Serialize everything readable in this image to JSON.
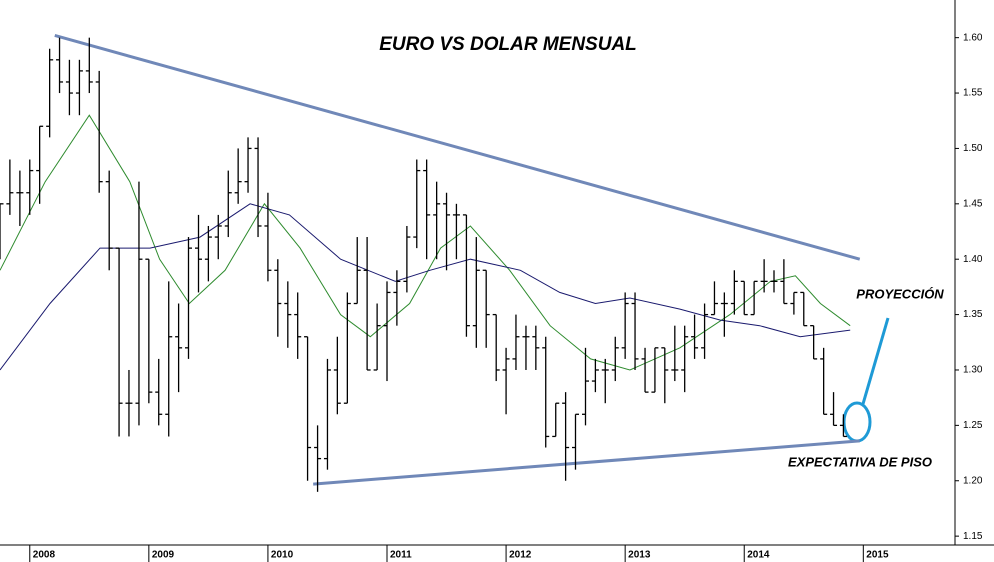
{
  "chart_data": {
    "type": "ohlc",
    "title": "EURO VS DOLAR MENSUAL",
    "x": [
      2007.75,
      2007.833,
      2007.917,
      2008,
      2008.083,
      2008.167,
      2008.25,
      2008.333,
      2008.417,
      2008.5,
      2008.583,
      2008.667,
      2008.75,
      2008.833,
      2008.917,
      2009,
      2009.083,
      2009.167,
      2009.25,
      2009.333,
      2009.417,
      2009.5,
      2009.583,
      2009.667,
      2009.75,
      2009.833,
      2009.917,
      2010,
      2010.083,
      2010.167,
      2010.25,
      2010.333,
      2010.417,
      2010.5,
      2010.583,
      2010.667,
      2010.75,
      2010.833,
      2010.917,
      2011,
      2011.083,
      2011.167,
      2011.25,
      2011.333,
      2011.417,
      2011.5,
      2011.583,
      2011.667,
      2011.75,
      2011.833,
      2011.917,
      2012,
      2012.083,
      2012.167,
      2012.25,
      2012.333,
      2012.417,
      2012.5,
      2012.583,
      2012.667,
      2012.75,
      2012.833,
      2012.917,
      2013,
      2013.083,
      2013.167,
      2013.25,
      2013.333,
      2013.417,
      2013.5,
      2013.583,
      2013.667,
      2013.75,
      2013.833,
      2013.917,
      2014,
      2014.083,
      2014.167,
      2014.25,
      2014.333,
      2014.417,
      2014.5,
      2014.583,
      2014.667,
      2014.75,
      2014.833
    ],
    "open": [
      1.42,
      1.45,
      1.46,
      1.46,
      1.48,
      1.52,
      1.58,
      1.56,
      1.55,
      1.57,
      1.56,
      1.47,
      1.41,
      1.27,
      1.27,
      1.4,
      1.28,
      1.26,
      1.33,
      1.32,
      1.41,
      1.4,
      1.42,
      1.43,
      1.46,
      1.47,
      1.5,
      1.43,
      1.39,
      1.36,
      1.35,
      1.33,
      1.23,
      1.22,
      1.3,
      1.27,
      1.36,
      1.39,
      1.3,
      1.34,
      1.37,
      1.38,
      1.42,
      1.48,
      1.44,
      1.45,
      1.44,
      1.44,
      1.34,
      1.39,
      1.35,
      1.3,
      1.31,
      1.33,
      1.33,
      1.32,
      1.24,
      1.27,
      1.23,
      1.26,
      1.29,
      1.3,
      1.3,
      1.32,
      1.36,
      1.31,
      1.28,
      1.32,
      1.3,
      1.3,
      1.33,
      1.32,
      1.35,
      1.36,
      1.36,
      1.38,
      1.35,
      1.38,
      1.38,
      1.38,
      1.36,
      1.37,
      1.34,
      1.31,
      1.26,
      1.25
    ],
    "high": [
      1.45,
      1.49,
      1.48,
      1.49,
      1.52,
      1.59,
      1.6,
      1.58,
      1.58,
      1.6,
      1.57,
      1.48,
      1.41,
      1.3,
      1.47,
      1.4,
      1.31,
      1.38,
      1.36,
      1.42,
      1.44,
      1.43,
      1.44,
      1.48,
      1.5,
      1.51,
      1.51,
      1.46,
      1.4,
      1.38,
      1.37,
      1.33,
      1.25,
      1.31,
      1.33,
      1.37,
      1.42,
      1.42,
      1.36,
      1.38,
      1.39,
      1.43,
      1.49,
      1.49,
      1.47,
      1.46,
      1.45,
      1.44,
      1.42,
      1.39,
      1.35,
      1.32,
      1.35,
      1.34,
      1.34,
      1.33,
      1.27,
      1.28,
      1.26,
      1.32,
      1.31,
      1.31,
      1.33,
      1.37,
      1.37,
      1.32,
      1.32,
      1.32,
      1.34,
      1.34,
      1.35,
      1.36,
      1.38,
      1.37,
      1.39,
      1.38,
      1.38,
      1.4,
      1.39,
      1.4,
      1.37,
      1.37,
      1.34,
      1.32,
      1.28,
      1.26
    ],
    "low": [
      1.4,
      1.44,
      1.43,
      1.44,
      1.45,
      1.51,
      1.55,
      1.53,
      1.53,
      1.55,
      1.46,
      1.39,
      1.24,
      1.24,
      1.25,
      1.27,
      1.25,
      1.24,
      1.28,
      1.31,
      1.37,
      1.38,
      1.4,
      1.42,
      1.45,
      1.46,
      1.42,
      1.38,
      1.33,
      1.32,
      1.31,
      1.2,
      1.19,
      1.21,
      1.26,
      1.27,
      1.36,
      1.3,
      1.3,
      1.29,
      1.34,
      1.37,
      1.41,
      1.4,
      1.4,
      1.39,
      1.4,
      1.33,
      1.32,
      1.32,
      1.29,
      1.26,
      1.3,
      1.3,
      1.3,
      1.23,
      1.24,
      1.2,
      1.21,
      1.25,
      1.28,
      1.27,
      1.29,
      1.31,
      1.3,
      1.28,
      1.28,
      1.27,
      1.29,
      1.28,
      1.31,
      1.31,
      1.35,
      1.33,
      1.35,
      1.35,
      1.35,
      1.37,
      1.37,
      1.36,
      1.35,
      1.34,
      1.31,
      1.26,
      1.25,
      1.24
    ],
    "close": [
      1.45,
      1.46,
      1.46,
      1.48,
      1.52,
      1.58,
      1.56,
      1.55,
      1.57,
      1.56,
      1.47,
      1.41,
      1.27,
      1.27,
      1.4,
      1.28,
      1.26,
      1.33,
      1.32,
      1.41,
      1.4,
      1.42,
      1.43,
      1.46,
      1.47,
      1.5,
      1.43,
      1.39,
      1.36,
      1.35,
      1.33,
      1.23,
      1.22,
      1.3,
      1.27,
      1.36,
      1.39,
      1.3,
      1.34,
      1.37,
      1.38,
      1.42,
      1.48,
      1.44,
      1.45,
      1.44,
      1.44,
      1.34,
      1.39,
      1.35,
      1.3,
      1.31,
      1.33,
      1.33,
      1.32,
      1.24,
      1.27,
      1.23,
      1.26,
      1.29,
      1.3,
      1.3,
      1.32,
      1.36,
      1.31,
      1.28,
      1.32,
      1.3,
      1.3,
      1.33,
      1.32,
      1.35,
      1.36,
      1.36,
      1.38,
      1.35,
      1.38,
      1.38,
      1.38,
      1.36,
      1.37,
      1.34,
      1.31,
      1.26,
      1.25,
      1.24
    ],
    "color": "#000000",
    "overlays": [
      {
        "color": "#2e8b2e",
        "x": [
          2007.75,
          2008.13,
          2008.5,
          2008.84,
          2009.09,
          2009.34,
          2009.64,
          2009.97,
          2010.27,
          2010.61,
          2010.86,
          2011.19,
          2011.45,
          2011.7,
          2012.03,
          2012.37,
          2012.71,
          2013.04,
          2013.46,
          2013.88,
          2014.22,
          2014.43,
          2014.64,
          2014.89
        ],
        "values": [
          1.39,
          1.47,
          1.53,
          1.47,
          1.4,
          1.36,
          1.39,
          1.45,
          1.41,
          1.35,
          1.33,
          1.36,
          1.41,
          1.43,
          1.39,
          1.34,
          1.31,
          1.3,
          1.32,
          1.35,
          1.38,
          1.385,
          1.36,
          1.34
        ]
      },
      {
        "color": "#1a1a6e",
        "x": [
          2007.75,
          2008.17,
          2008.59,
          2009.01,
          2009.43,
          2009.85,
          2010.18,
          2010.61,
          2011.07,
          2011.36,
          2011.7,
          2012.12,
          2012.45,
          2012.75,
          2013.04,
          2013.46,
          2013.8,
          2014.13,
          2014.47,
          2014.89
        ],
        "values": [
          1.3,
          1.36,
          1.41,
          1.41,
          1.42,
          1.45,
          1.44,
          1.4,
          1.38,
          1.39,
          1.4,
          1.39,
          1.37,
          1.36,
          1.365,
          1.355,
          1.345,
          1.34,
          1.33,
          1.336
        ]
      }
    ],
    "trendlines": [
      {
        "color": "#7088b8",
        "x": [
          2008.21,
          2014.97
        ],
        "values": [
          1.602,
          1.4
        ]
      },
      {
        "color": "#7088b8",
        "x": [
          2010.38,
          2014.97
        ],
        "values": [
          1.197,
          1.236
        ]
      }
    ],
    "annotations": [
      {
        "text": "PROYECCIÓN",
        "color": "#1e9ad6"
      },
      {
        "text": "EXPECTATIVA DE PISO",
        "color": "#e02020"
      }
    ],
    "xlim": [
      2007.75,
      2015.77
    ],
    "ylim": [
      1.142,
      1.634
    ],
    "xticks": [
      2008,
      2009,
      2010,
      2011,
      2012,
      2013,
      2014,
      2015
    ],
    "yticks": [
      {
        "value": 1.15,
        "label": "1.15"
      },
      {
        "value": 1.2,
        "label": "1.20"
      },
      {
        "value": 1.25,
        "label": "1.25"
      },
      {
        "value": 1.3,
        "label": "1.30"
      },
      {
        "value": 1.35,
        "label": "1.35"
      },
      {
        "value": 1.4,
        "label": "1.40"
      },
      {
        "value": 1.45,
        "label": "1.45"
      },
      {
        "value": 1.5,
        "label": "1.50"
      },
      {
        "value": 1.55,
        "label": "1.55"
      },
      {
        "value": 1.6,
        "label": "1.60"
      }
    ]
  }
}
